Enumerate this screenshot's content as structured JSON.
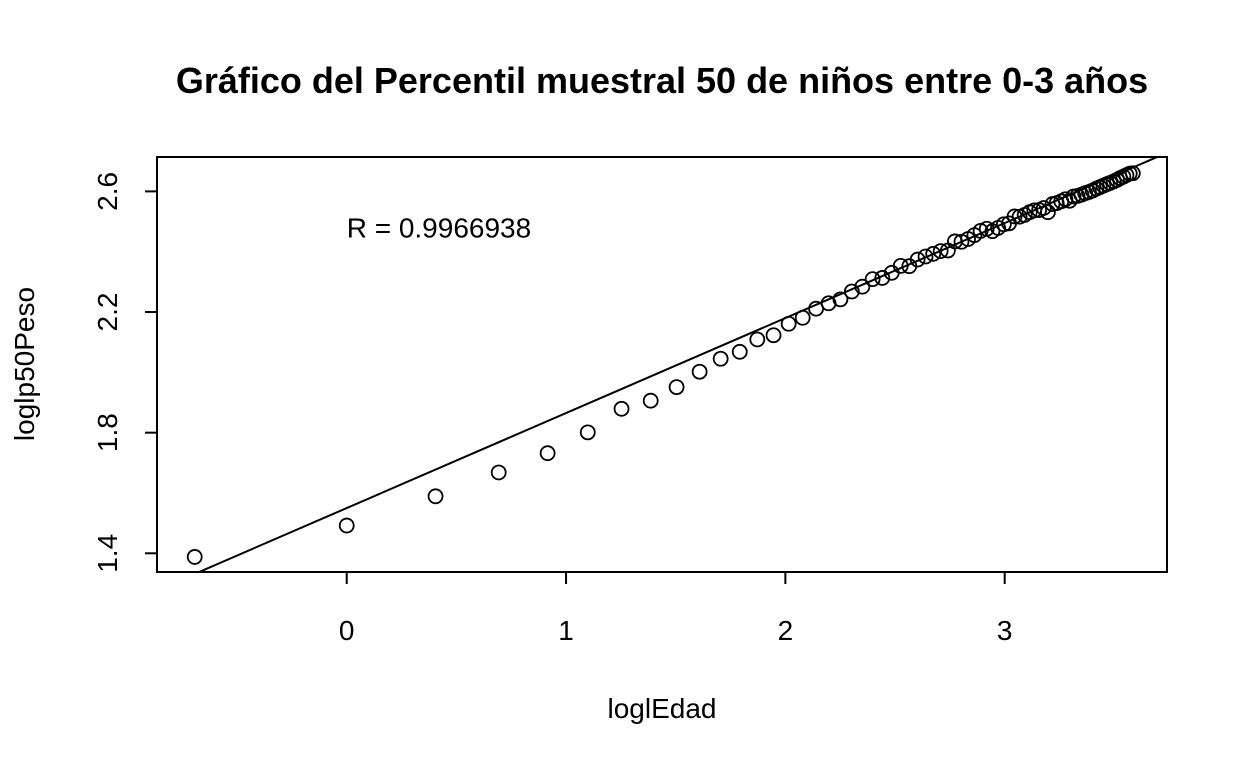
{
  "chart_data": {
    "type": "scatter",
    "title": "Gráfico del Percentil muestral 50 de niños entre 0-3 años",
    "xlabel": "loglEdad",
    "ylabel": "loglp50Peso",
    "xlim": [
      -0.865,
      3.74
    ],
    "ylim": [
      1.338,
      2.714
    ],
    "xticks": [
      0,
      1,
      2,
      3
    ],
    "yticks": [
      1.4,
      1.8,
      2.2,
      2.6
    ],
    "xticklabels": [
      "0",
      "1",
      "2",
      "3"
    ],
    "yticklabels": [
      "1.4",
      "1.8",
      "2.2",
      "2.6"
    ],
    "grid": false,
    "annotation": {
      "text": "R = 0.9966938",
      "x": 0.0,
      "y": 2.48
    },
    "fit_line": {
      "intercept": 1.55,
      "slope": 0.315
    },
    "points": [
      [
        -0.693,
        1.388
      ],
      [
        0.0,
        1.492
      ],
      [
        0.405,
        1.589
      ],
      [
        0.693,
        1.668
      ],
      [
        0.916,
        1.732
      ],
      [
        1.099,
        1.801
      ],
      [
        1.253,
        1.879
      ],
      [
        1.386,
        1.906
      ],
      [
        1.504,
        1.951
      ],
      [
        1.609,
        2.002
      ],
      [
        1.705,
        2.045
      ],
      [
        1.792,
        2.068
      ],
      [
        1.872,
        2.109
      ],
      [
        1.946,
        2.123
      ],
      [
        2.015,
        2.161
      ],
      [
        2.079,
        2.181
      ],
      [
        2.14,
        2.211
      ],
      [
        2.197,
        2.229
      ],
      [
        2.251,
        2.242
      ],
      [
        2.303,
        2.268
      ],
      [
        2.351,
        2.284
      ],
      [
        2.398,
        2.309
      ],
      [
        2.442,
        2.313
      ],
      [
        2.485,
        2.33
      ],
      [
        2.526,
        2.353
      ],
      [
        2.565,
        2.352
      ],
      [
        2.603,
        2.374
      ],
      [
        2.639,
        2.384
      ],
      [
        2.674,
        2.393
      ],
      [
        2.708,
        2.402
      ],
      [
        2.741,
        2.404
      ],
      [
        2.773,
        2.434
      ],
      [
        2.803,
        2.433
      ],
      [
        2.833,
        2.442
      ],
      [
        2.862,
        2.455
      ],
      [
        2.89,
        2.469
      ],
      [
        2.918,
        2.476
      ],
      [
        2.944,
        2.468
      ],
      [
        2.97,
        2.479
      ],
      [
        2.996,
        2.491
      ],
      [
        3.02,
        2.494
      ],
      [
        3.045,
        2.517
      ],
      [
        3.068,
        2.516
      ],
      [
        3.091,
        2.522
      ],
      [
        3.114,
        2.531
      ],
      [
        3.135,
        2.537
      ],
      [
        3.157,
        2.538
      ],
      [
        3.178,
        2.545
      ],
      [
        3.197,
        2.531
      ],
      [
        3.218,
        2.558
      ],
      [
        3.237,
        2.561
      ],
      [
        3.258,
        2.567
      ],
      [
        3.277,
        2.574
      ],
      [
        3.296,
        2.569
      ],
      [
        3.314,
        2.583
      ],
      [
        3.332,
        2.585
      ],
      [
        3.35,
        2.589
      ],
      [
        3.367,
        2.594
      ],
      [
        3.384,
        2.598
      ],
      [
        3.401,
        2.603
      ],
      [
        3.418,
        2.609
      ],
      [
        3.434,
        2.614
      ],
      [
        3.45,
        2.619
      ],
      [
        3.466,
        2.624
      ],
      [
        3.481,
        2.628
      ],
      [
        3.497,
        2.633
      ],
      [
        3.512,
        2.638
      ],
      [
        3.526,
        2.644
      ],
      [
        3.541,
        2.649
      ],
      [
        3.555,
        2.654
      ],
      [
        3.57,
        2.659
      ],
      [
        3.584,
        2.66
      ]
    ]
  }
}
